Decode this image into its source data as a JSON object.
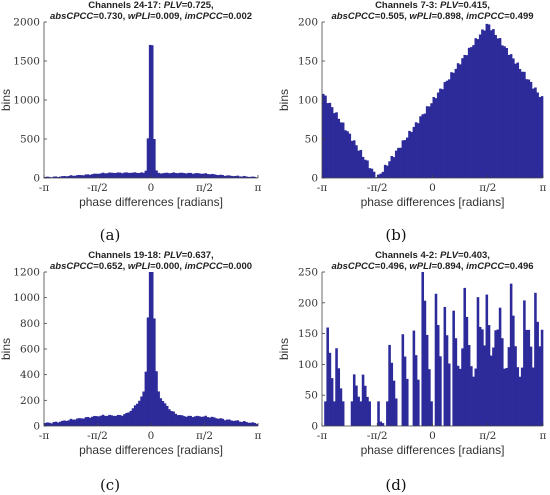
{
  "colors": {
    "bar": "#2d2a9a",
    "axis": "#444444",
    "text": "#333333"
  },
  "chart_data": [
    {
      "type": "bar",
      "letter": "(a)",
      "title_line1": [
        [
          "Channels 24-17: ",
          "n"
        ],
        [
          "PLV",
          "i"
        ],
        [
          "=0.725,",
          "n"
        ]
      ],
      "title_line2": [
        [
          "absCPCC",
          "i"
        ],
        [
          "=0.730,  ",
          "n"
        ],
        [
          "wPLI",
          "i"
        ],
        [
          "=0.009,  ",
          "n"
        ],
        [
          "imCPCC",
          "i"
        ],
        [
          "=0.002",
          "n"
        ]
      ],
      "xlabel": "phase differences [radians]",
      "ylabel": "bins",
      "xlim": [
        -3.1416,
        3.1416
      ],
      "ylim": [
        0,
        2000
      ],
      "yticks": [
        0,
        500,
        1000,
        1500,
        2000
      ],
      "xtick_labels": [
        "-π",
        "-π/2",
        "0",
        "π/2",
        "π"
      ],
      "nbins": 100,
      "profile": "peak0",
      "params": {
        "base": 10,
        "peak": 1930,
        "width": 0.055,
        "tails": [
          [
            -1.0,
            0.9,
            55
          ],
          [
            1.1,
            0.9,
            50
          ]
        ]
      }
    },
    {
      "type": "bar",
      "letter": "(b)",
      "title_line1": [
        [
          "Channels 7-3: ",
          "n"
        ],
        [
          "PLV",
          "i"
        ],
        [
          "=0.415,",
          "n"
        ]
      ],
      "title_line2": [
        [
          "absCPCC",
          "i"
        ],
        [
          "=0.505,  ",
          "n"
        ],
        [
          "wPLI",
          "i"
        ],
        [
          "=0.898,  ",
          "n"
        ],
        [
          "imCPCC",
          "i"
        ],
        [
          "=0.499",
          "n"
        ]
      ],
      "xlabel": "phase differences [radians]",
      "ylabel": "bins",
      "xlim": [
        -3.1416,
        3.1416
      ],
      "ylim": [
        0,
        200
      ],
      "yticks": [
        0,
        50,
        100,
        150,
        200
      ],
      "xtick_labels": [
        "-π",
        "-π/2",
        "0",
        "π/2",
        "π"
      ],
      "nbins": 100,
      "profile": "vshape",
      "params": {
        "min_at": -1.5708,
        "left_top": 110,
        "peak_at": 1.5708,
        "peak": 198,
        "right_end": 100
      }
    },
    {
      "type": "bar",
      "letter": "(c)",
      "title_line1": [
        [
          "Channels 19-18: ",
          "n"
        ],
        [
          "PLV",
          "i"
        ],
        [
          "=0.637,",
          "n"
        ]
      ],
      "title_line2": [
        [
          "absCPCC",
          "i"
        ],
        [
          "=0.652,  ",
          "n"
        ],
        [
          "wPLI",
          "i"
        ],
        [
          "=0.000,  ",
          "n"
        ],
        [
          "imCPCC",
          "i"
        ],
        [
          "=0.000",
          "n"
        ]
      ],
      "xlabel": "phase differences [radians]",
      "ylabel": "bins",
      "xlim": [
        -3.1416,
        3.1416
      ],
      "ylim": [
        0,
        1200
      ],
      "yticks": [
        0,
        200,
        400,
        600,
        800,
        1000,
        1200
      ],
      "xtick_labels": [
        "-π",
        "-π/2",
        "0",
        "π/2",
        "π"
      ],
      "nbins": 100,
      "profile": "peak0",
      "params": {
        "base": 15,
        "peak": 1150,
        "width": 0.08,
        "tails": [
          [
            -1.3,
            0.9,
            65
          ],
          [
            1.3,
            0.9,
            60
          ],
          [
            0,
            0.35,
            220
          ]
        ]
      }
    },
    {
      "type": "bar",
      "letter": "(d)",
      "title_line1": [
        [
          "Channels 4-2: ",
          "n"
        ],
        [
          "PLV",
          "i"
        ],
        [
          "=0.403,",
          "n"
        ]
      ],
      "title_line2": [
        [
          "absCPCC",
          "i"
        ],
        [
          "=0.496,  ",
          "n"
        ],
        [
          "wPLI",
          "i"
        ],
        [
          "=0.894,  ",
          "n"
        ],
        [
          "imCPCC",
          "i"
        ],
        [
          "=0.496",
          "n"
        ]
      ],
      "xlabel": "phase differences [radians]",
      "ylabel": "bins",
      "xlim": [
        -3.1416,
        3.1416
      ],
      "ylim": [
        0,
        250
      ],
      "yticks": [
        0,
        50,
        100,
        150,
        200,
        250
      ],
      "xtick_labels": [
        "-π",
        "-π/2",
        "0",
        "π/2",
        "π"
      ],
      "nbins": 100,
      "profile": "spiky",
      "params": {
        "spikes": [
          [
            -3.0,
            170
          ],
          [
            -2.75,
            135
          ],
          [
            -2.2,
            75
          ],
          [
            -1.95,
            75
          ],
          [
            -1.55,
            10
          ],
          [
            -1.2,
            120
          ],
          [
            -0.85,
            150
          ],
          [
            -0.55,
            165
          ],
          [
            -0.25,
            230
          ],
          [
            0.1,
            210
          ],
          [
            0.35,
            190
          ],
          [
            0.6,
            185
          ],
          [
            0.95,
            195
          ],
          [
            1.3,
            200
          ],
          [
            1.55,
            205
          ],
          [
            1.9,
            205
          ],
          [
            2.25,
            215
          ],
          [
            2.6,
            210
          ],
          [
            2.95,
            195
          ]
        ]
      }
    }
  ]
}
